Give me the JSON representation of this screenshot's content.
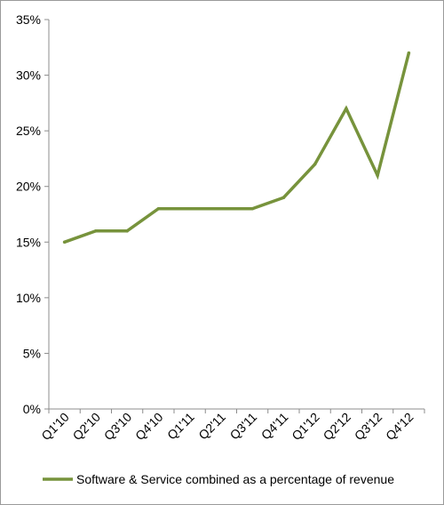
{
  "chart_data": {
    "type": "line",
    "categories": [
      "Q1'10",
      "Q2'10",
      "Q3'10",
      "Q4'10",
      "Q1'11",
      "Q2'11",
      "Q3'11",
      "Q4'11",
      "Q1'12",
      "Q2'12",
      "Q3'12",
      "Q4'12"
    ],
    "series": [
      {
        "name": "Software & Service combined as a percentage of revenue",
        "values": [
          15,
          16,
          16,
          18,
          18,
          18,
          18,
          19,
          22,
          27,
          21,
          32
        ],
        "color": "#77933c"
      }
    ],
    "y_ticks": [
      "0%",
      "5%",
      "10%",
      "15%",
      "20%",
      "25%",
      "30%",
      "35%"
    ],
    "ylim": [
      0,
      35
    ],
    "y_unit": "%",
    "grid": false,
    "legend_position": "bottom"
  }
}
